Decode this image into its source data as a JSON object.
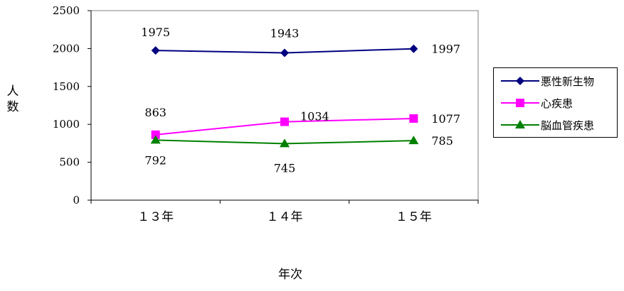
{
  "chart_data": {
    "type": "line",
    "categories": [
      "１３年",
      "１４年",
      "１５年"
    ],
    "series": [
      {
        "name": "悪性新生物",
        "values": [
          1975,
          1943,
          1997
        ],
        "color": "#000080",
        "marker": "diamond"
      },
      {
        "name": "心疾患",
        "values": [
          863,
          1034,
          1077
        ],
        "color": "#FF00FF",
        "marker": "square"
      },
      {
        "name": "脳血管疾患",
        "values": [
          792,
          745,
          785
        ],
        "color": "#008000",
        "marker": "triangle"
      }
    ],
    "ylabel": "人数",
    "xlabel": "年次",
    "ylim": [
      0,
      2500
    ],
    "yticks": [
      0,
      500,
      1000,
      1500,
      2000,
      2500
    ],
    "legend_position": "right",
    "grid": false
  }
}
